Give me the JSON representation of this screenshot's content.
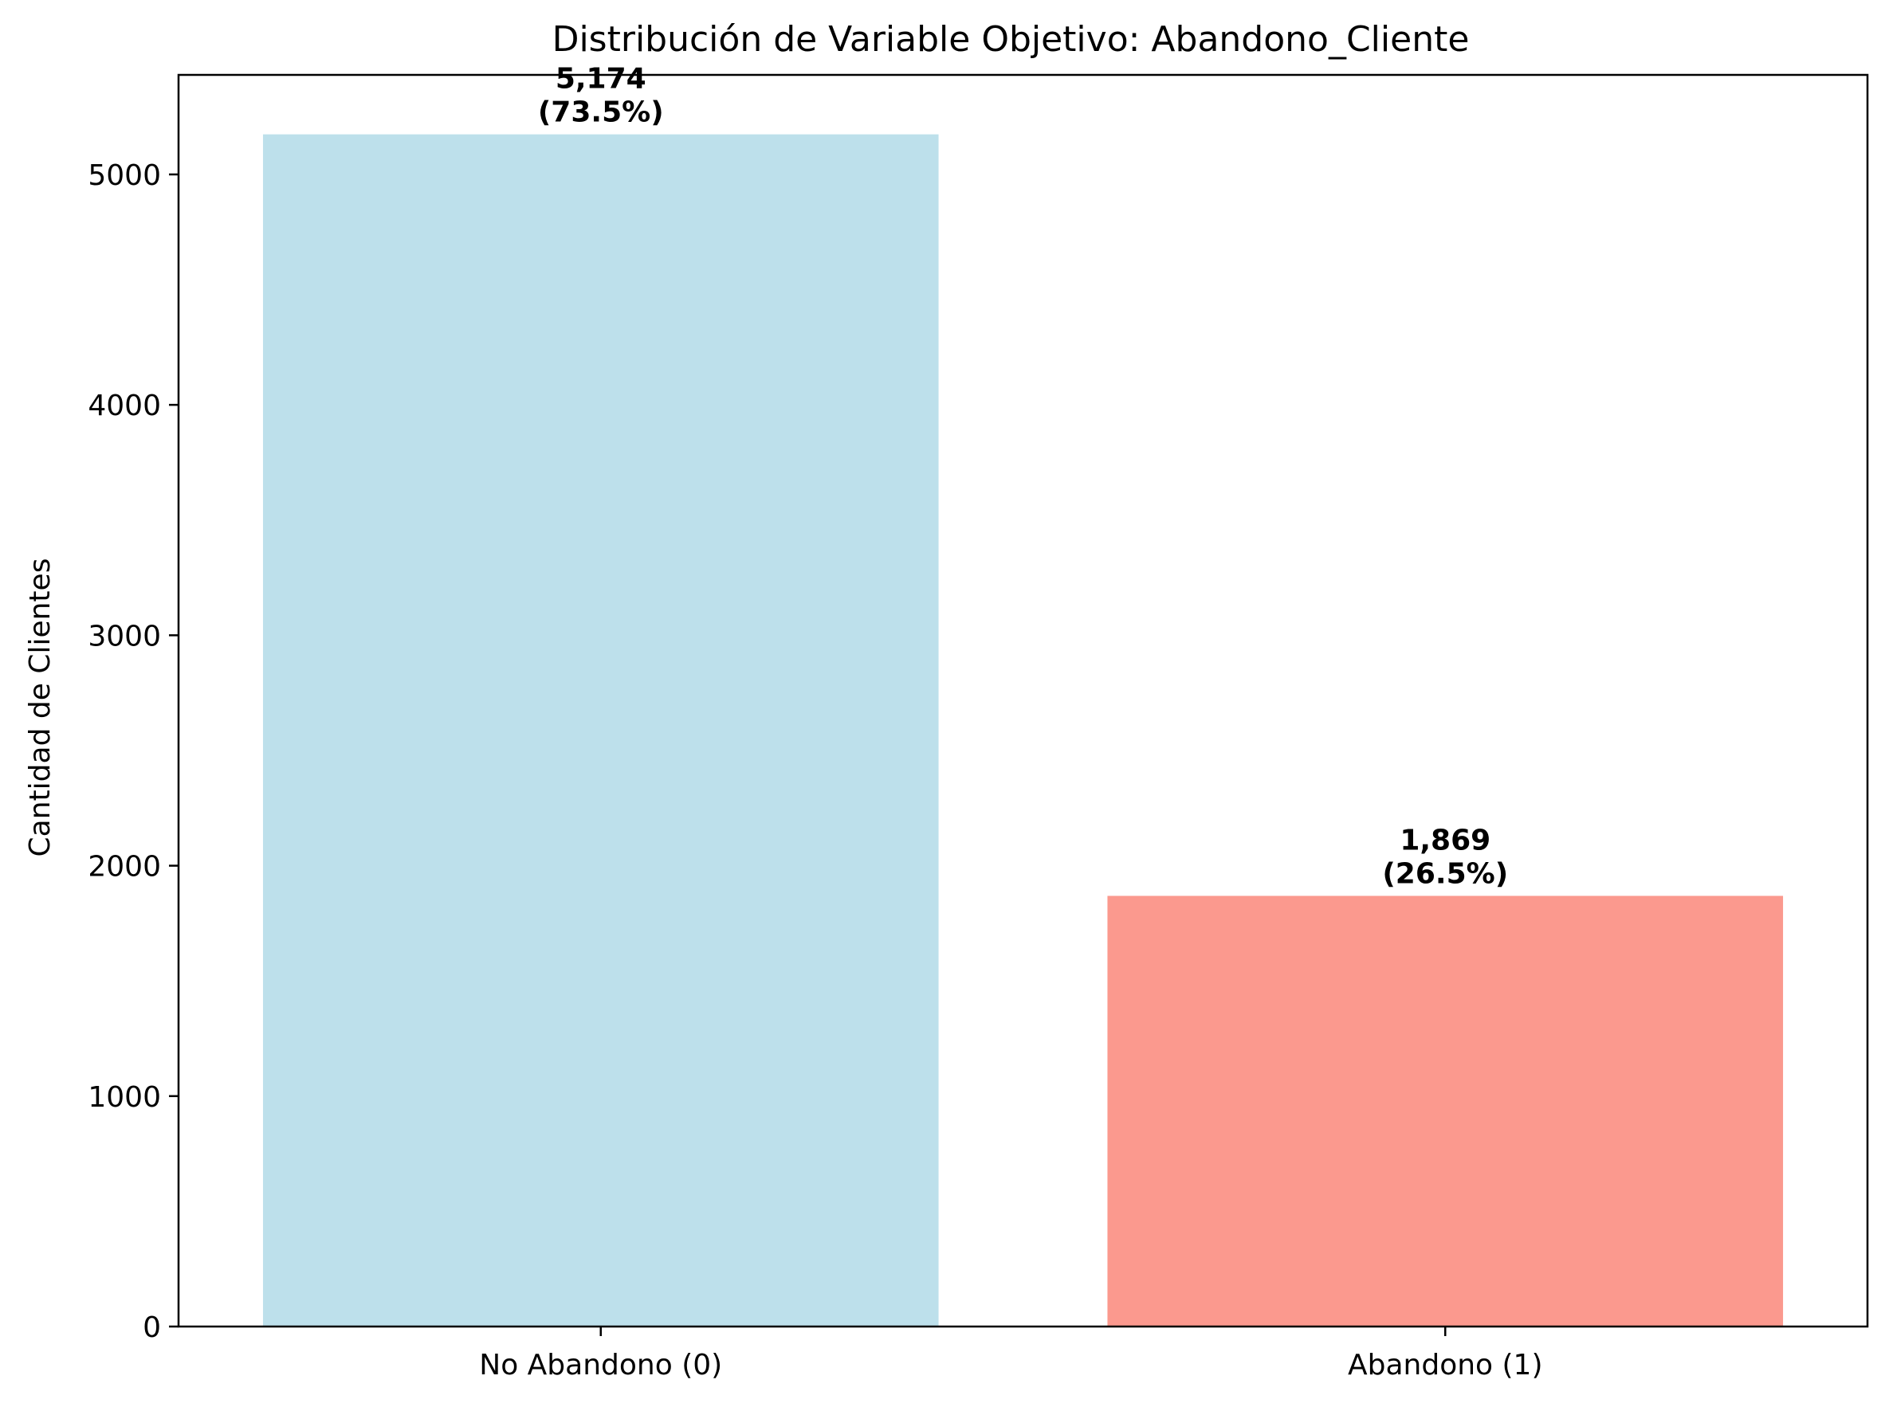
{
  "chart_data": {
    "type": "bar",
    "title": "Distribución de Variable Objetivo: Abandono_Cliente",
    "xlabel": "",
    "ylabel": "Cantidad de Clientes",
    "categories": [
      "No Abandono (0)",
      "Abandono (1)"
    ],
    "values": [
      5174,
      1869
    ],
    "bar_labels": [
      {
        "count": "5,174",
        "percent": "(73.5%)"
      },
      {
        "count": "1,869",
        "percent": "(26.5%)"
      }
    ],
    "colors": [
      "#add8e6",
      "#fa8072"
    ],
    "ylim": [
      0,
      5432
    ],
    "yticks": [
      0,
      1000,
      2000,
      3000,
      4000,
      5000
    ],
    "grid": false,
    "legend": false
  }
}
